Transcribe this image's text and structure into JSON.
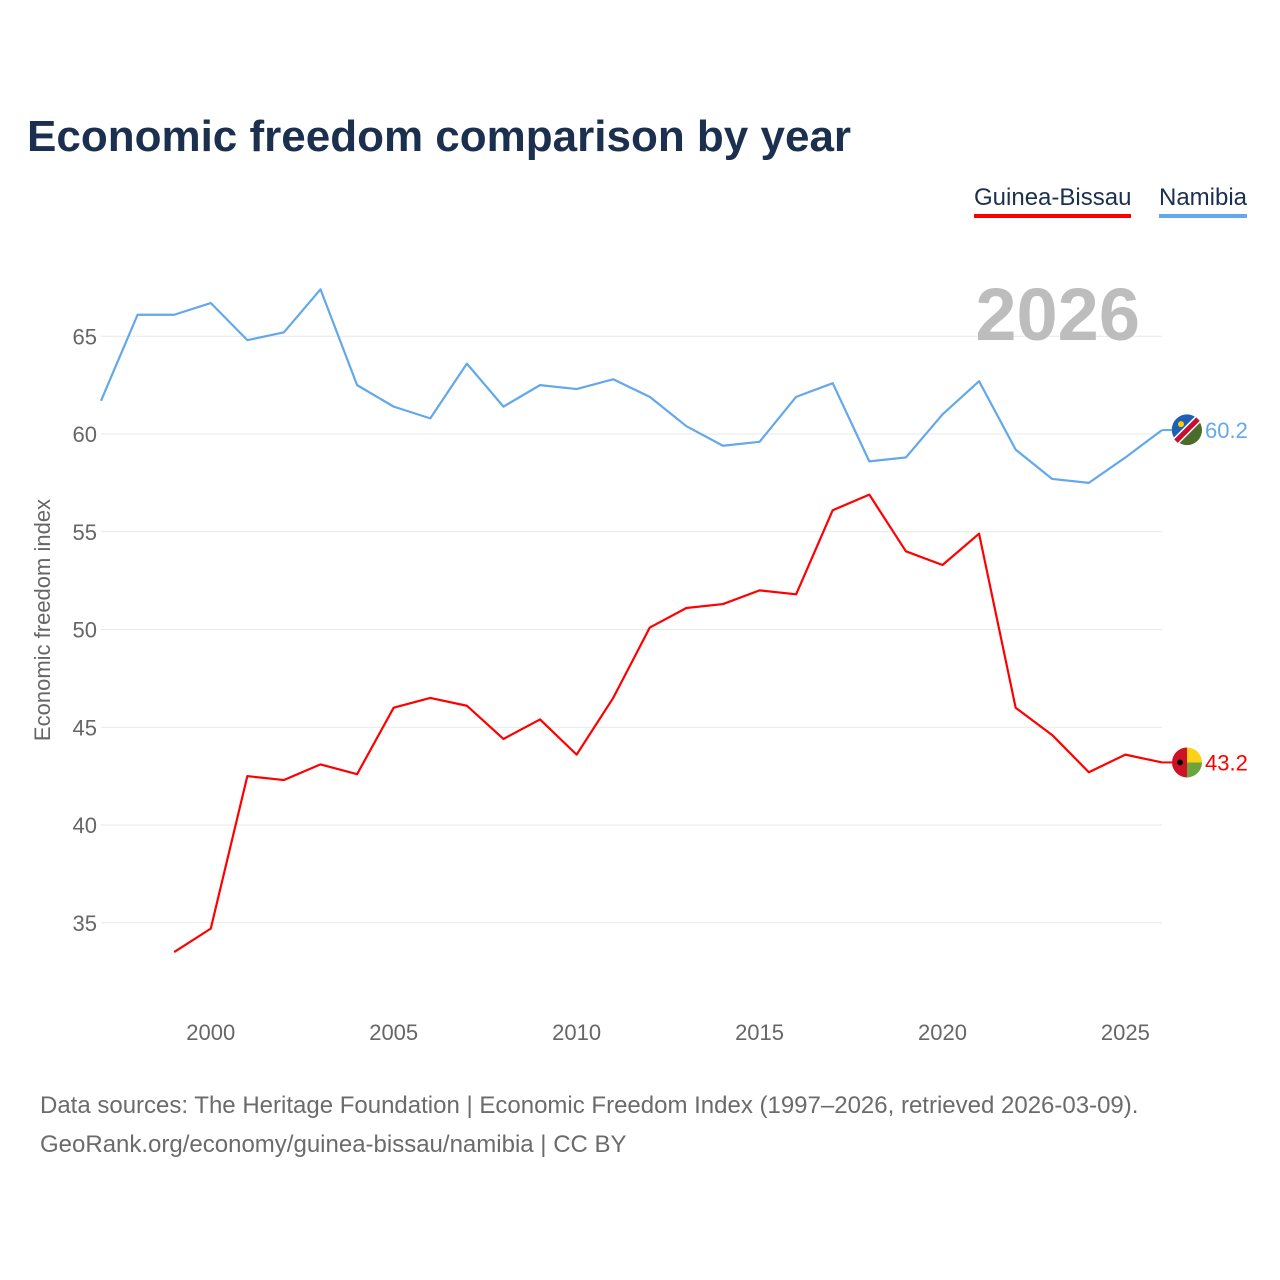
{
  "chart_data": {
    "type": "line",
    "title": "Economic freedom comparison by year",
    "xlabel": "",
    "ylabel": "Economic freedom index",
    "xlim": [
      1997,
      2026
    ],
    "ylim": [
      30.5,
      69
    ],
    "grid": true,
    "legend_placement": "top-right",
    "year_label": "2026",
    "x_ticks": [
      2000,
      2005,
      2010,
      2015,
      2020,
      2025
    ],
    "y_ticks": [
      35,
      40,
      45,
      50,
      55,
      60,
      65
    ],
    "series": [
      {
        "name": "Guinea-Bissau",
        "color": "#ff0000",
        "end_label": "43.2",
        "x": [
          1999,
          2000,
          2001,
          2002,
          2003,
          2004,
          2005,
          2006,
          2007,
          2008,
          2009,
          2010,
          2011,
          2012,
          2013,
          2014,
          2015,
          2016,
          2017,
          2018,
          2019,
          2020,
          2021,
          2022,
          2023,
          2024,
          2025,
          2026
        ],
        "values": [
          33.5,
          34.7,
          42.5,
          42.3,
          43.1,
          42.6,
          46.0,
          46.5,
          46.1,
          44.4,
          45.4,
          43.6,
          46.5,
          50.1,
          51.1,
          51.3,
          52.0,
          51.8,
          56.1,
          56.9,
          54.0,
          53.3,
          54.9,
          46.0,
          44.6,
          42.7,
          43.6,
          43.2
        ]
      },
      {
        "name": "Namibia",
        "color": "#62a8ea",
        "end_label": "60.2",
        "x": [
          1997,
          1998,
          1999,
          2000,
          2001,
          2002,
          2003,
          2004,
          2005,
          2006,
          2007,
          2008,
          2009,
          2010,
          2011,
          2012,
          2013,
          2014,
          2015,
          2016,
          2017,
          2018,
          2019,
          2020,
          2021,
          2022,
          2023,
          2024,
          2025,
          2026
        ],
        "values": [
          61.7,
          66.1,
          66.1,
          66.7,
          64.8,
          65.2,
          67.4,
          62.5,
          61.4,
          60.8,
          63.6,
          61.4,
          62.5,
          62.3,
          62.8,
          61.9,
          60.4,
          59.4,
          59.6,
          61.9,
          62.6,
          58.6,
          58.8,
          61.0,
          62.7,
          59.2,
          57.7,
          57.5,
          58.8,
          60.2
        ]
      }
    ]
  },
  "source": {
    "line1": "Data sources: The Heritage Foundation | Economic Freedom Index (1997–2026, retrieved 2026-03-09).",
    "line2": "GeoRank.org/economy/guinea-bissau/namibia | CC BY"
  }
}
